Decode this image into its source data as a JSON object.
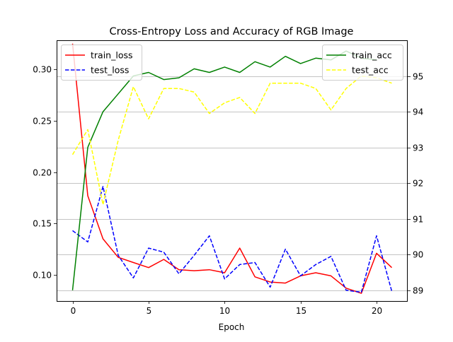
{
  "chart_data": {
    "type": "line",
    "title": "Cross-Entropy Loss and Accuracy of RGB Image",
    "xlabel": "Epoch",
    "ylabel_left": "",
    "ylabel_right": "",
    "x": [
      0,
      1,
      2,
      3,
      4,
      5,
      6,
      7,
      8,
      9,
      10,
      11,
      12,
      13,
      14,
      15,
      16,
      17,
      18,
      19,
      20,
      21
    ],
    "xlim": [
      -1.05,
      22.05
    ],
    "xticks": [
      0,
      5,
      10,
      15,
      20
    ],
    "ylim_left": [
      0.0745,
      0.3283
    ],
    "yticks_left": [
      0.1,
      0.15,
      0.2,
      0.25,
      0.3
    ],
    "ylim_right": [
      88.7,
      96.0
    ],
    "yticks_right": [
      89,
      90,
      91,
      92,
      93,
      94,
      95
    ],
    "grid": "horizontal lines at right-axis ticks",
    "legend_left_placement": "top-left",
    "legend_right_placement": "top-right",
    "series_left": [
      {
        "name": "train_loss",
        "color": "#ff0000",
        "style": "solid",
        "values": [
          0.325,
          0.177,
          0.135,
          0.117,
          0.112,
          0.107,
          0.115,
          0.105,
          0.104,
          0.105,
          0.102,
          0.126,
          0.098,
          0.093,
          0.092,
          0.099,
          0.102,
          0.099,
          0.087,
          0.082,
          0.121,
          0.107
        ]
      },
      {
        "name": "test_loss",
        "color": "#0000ff",
        "style": "dashed",
        "values": [
          0.143,
          0.132,
          0.186,
          0.119,
          0.097,
          0.126,
          0.122,
          0.101,
          0.119,
          0.138,
          0.096,
          0.11,
          0.112,
          0.088,
          0.125,
          0.099,
          0.11,
          0.118,
          0.085,
          0.083,
          0.138,
          0.084
        ]
      }
    ],
    "series_right": [
      {
        "name": "train_acc",
        "color": "#008000",
        "style": "solid",
        "values": [
          89.0,
          93.0,
          94.0,
          94.5,
          95.0,
          95.1,
          94.9,
          94.95,
          95.2,
          95.1,
          95.25,
          95.1,
          95.4,
          95.25,
          95.55,
          95.35,
          95.5,
          95.45,
          95.7,
          95.5,
          95.45,
          null
        ]
      },
      {
        "name": "test_acc",
        "color": "#ffff00",
        "style": "dashed",
        "values": [
          92.8,
          93.5,
          91.4,
          93.2,
          94.7,
          93.8,
          94.65,
          94.65,
          94.55,
          93.95,
          94.25,
          94.4,
          93.95,
          94.8,
          94.8,
          94.8,
          94.65,
          94.05,
          94.65,
          95.0,
          94.95,
          94.8
        ]
      }
    ]
  }
}
